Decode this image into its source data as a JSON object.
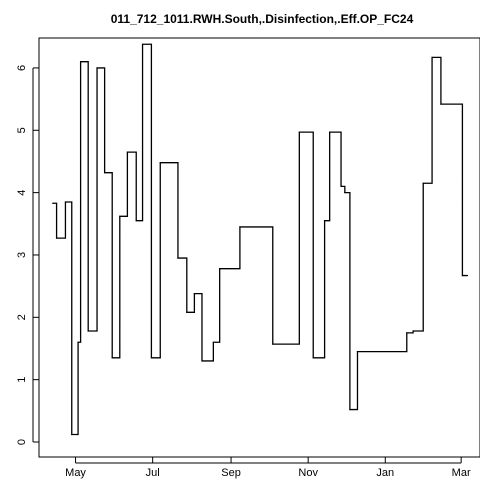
{
  "chart_data": {
    "type": "line",
    "step": true,
    "title": "011_712_1011.RWH.South,.Disinfection,.Eff.OP_FC24",
    "xlabel": "",
    "ylabel": "",
    "ylim": [
      0,
      6.4
    ],
    "xlim": [
      "2011-04-10",
      "2012-03-08"
    ],
    "grid": false,
    "x_ticks": [
      {
        "label": "May",
        "date": "2011-05-01"
      },
      {
        "label": "Jul",
        "date": "2011-07-01"
      },
      {
        "label": "Sep",
        "date": "2011-09-01"
      },
      {
        "label": "Nov",
        "date": "2011-11-01"
      },
      {
        "label": "Jan",
        "date": "2012-01-01"
      },
      {
        "label": "Mar",
        "date": "2012-03-01"
      }
    ],
    "y_ticks": [
      0,
      1,
      2,
      3,
      4,
      5,
      6
    ],
    "series": [
      {
        "color": "#000000",
        "points": [
          {
            "x": "2011-04-13",
            "y": 3.83
          },
          {
            "x": "2011-04-16",
            "y": 3.27
          },
          {
            "x": "2011-04-23",
            "y": 3.85
          },
          {
            "x": "2011-04-28",
            "y": 0.12
          },
          {
            "x": "2011-05-03",
            "y": 1.6
          },
          {
            "x": "2011-05-05",
            "y": 6.1
          },
          {
            "x": "2011-05-11",
            "y": 1.78
          },
          {
            "x": "2011-05-18",
            "y": 6.0
          },
          {
            "x": "2011-05-24",
            "y": 4.32
          },
          {
            "x": "2011-05-30",
            "y": 1.35
          },
          {
            "x": "2011-06-05",
            "y": 3.62
          },
          {
            "x": "2011-06-11",
            "y": 4.65
          },
          {
            "x": "2011-06-18",
            "y": 3.55
          },
          {
            "x": "2011-06-23",
            "y": 6.38
          },
          {
            "x": "2011-06-30",
            "y": 1.35
          },
          {
            "x": "2011-07-07",
            "y": 4.48
          },
          {
            "x": "2011-07-21",
            "y": 2.95
          },
          {
            "x": "2011-07-28",
            "y": 2.08
          },
          {
            "x": "2011-08-03",
            "y": 2.38
          },
          {
            "x": "2011-08-09",
            "y": 1.3
          },
          {
            "x": "2011-08-18",
            "y": 1.6
          },
          {
            "x": "2011-08-23",
            "y": 2.78
          },
          {
            "x": "2011-09-08",
            "y": 3.45
          },
          {
            "x": "2011-10-04",
            "y": 1.57
          },
          {
            "x": "2011-10-25",
            "y": 4.97
          },
          {
            "x": "2011-11-05",
            "y": 1.35
          },
          {
            "x": "2011-11-14",
            "y": 3.55
          },
          {
            "x": "2011-11-18",
            "y": 4.97
          },
          {
            "x": "2011-11-27",
            "y": 4.1
          },
          {
            "x": "2011-11-30",
            "y": 4.0
          },
          {
            "x": "2011-12-04",
            "y": 0.52
          },
          {
            "x": "2011-12-10",
            "y": 1.45
          },
          {
            "x": "2012-01-18",
            "y": 1.75
          },
          {
            "x": "2012-01-23",
            "y": 1.78
          },
          {
            "x": "2012-01-31",
            "y": 4.15
          },
          {
            "x": "2012-02-07",
            "y": 6.17
          },
          {
            "x": "2012-02-14",
            "y": 5.42
          },
          {
            "x": "2012-03-02",
            "y": 2.67
          },
          {
            "x": "2012-03-06",
            "y": 2.67
          }
        ]
      }
    ]
  }
}
